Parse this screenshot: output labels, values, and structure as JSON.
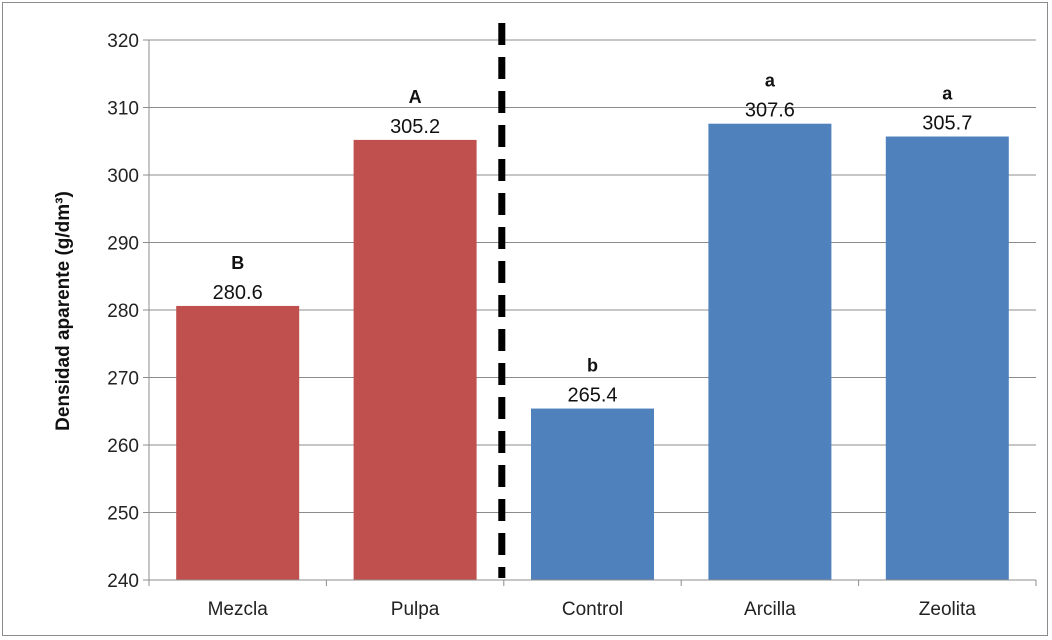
{
  "chart_data": {
    "type": "bar",
    "title": "",
    "xlabel": "",
    "ylabel": "Densidad aparente (g/dm³)",
    "ylim": [
      240,
      320
    ],
    "yticks": [
      240,
      250,
      260,
      270,
      280,
      290,
      300,
      310,
      320
    ],
    "grid": true,
    "legend": "none",
    "categories": [
      "Mezcla",
      "Pulpa",
      "Control",
      "Arcilla",
      "Zeolita"
    ],
    "values": [
      280.6,
      305.2,
      265.4,
      307.6,
      305.7
    ],
    "value_labels": [
      "280.6",
      "305.2",
      "265.4",
      "307.6",
      "305.7"
    ],
    "significance_letters": [
      "B",
      "A",
      "b",
      "a",
      "a"
    ],
    "bar_colors": [
      "#c0504d",
      "#c0504d",
      "#4f81bd",
      "#4f81bd",
      "#4f81bd"
    ],
    "divider": {
      "style": "dashed",
      "after_category": "Pulpa",
      "color": "#000000"
    }
  }
}
